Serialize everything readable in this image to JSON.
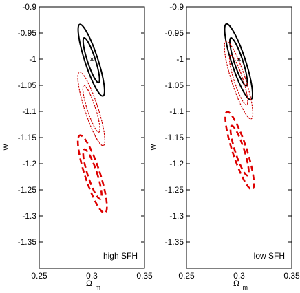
{
  "chart_data": [
    {
      "type": "contour",
      "panel_label": "high SFH",
      "xlabel": "Ω",
      "xlabel_sub": "m",
      "ylabel": "w",
      "xlim": [
        0.25,
        0.35
      ],
      "ylim": [
        -1.4,
        -0.9
      ],
      "xticks": [
        "0.25",
        "0.3",
        "0.35"
      ],
      "yticks": [
        "-0.9",
        "-0.95",
        "-1",
        "-1.05",
        "-1.1",
        "-1.15",
        "-1.2",
        "-1.25",
        "-1.3",
        "-1.35"
      ],
      "fiducial": {
        "x": 0.3,
        "y": -1.0
      },
      "contours": [
        {
          "style": "solid",
          "color": "#000000",
          "level": "outer",
          "cx": 0.2995,
          "cy": -1.002,
          "a": 0.072,
          "b": 0.0062,
          "angle": 18
        },
        {
          "style": "solid",
          "color": "#000000",
          "level": "inner",
          "cx": 0.2995,
          "cy": -1.002,
          "a": 0.045,
          "b": 0.0038,
          "angle": 18
        },
        {
          "style": "dotted",
          "color": "#cc0000",
          "level": "outer",
          "cx": 0.2995,
          "cy": -1.095,
          "a": 0.074,
          "b": 0.0063,
          "angle": 18
        },
        {
          "style": "dotted",
          "color": "#cc0000",
          "level": "inner",
          "cx": 0.2995,
          "cy": -1.095,
          "a": 0.047,
          "b": 0.0039,
          "angle": 18
        },
        {
          "style": "dashed",
          "color": "#dd0000",
          "level": "outer",
          "cx": 0.3005,
          "cy": -1.22,
          "a": 0.078,
          "b": 0.0072,
          "angle": 18
        },
        {
          "style": "dashed",
          "color": "#dd0000",
          "level": "inner",
          "cx": 0.3005,
          "cy": -1.22,
          "a": 0.05,
          "b": 0.0045,
          "angle": 18
        }
      ]
    },
    {
      "type": "contour",
      "panel_label": "low SFH",
      "xlabel": "Ω",
      "xlabel_sub": "m",
      "ylabel": "w",
      "xlim": [
        0.25,
        0.35
      ],
      "ylim": [
        -1.4,
        -0.9
      ],
      "xticks": [
        "0.25",
        "0.3",
        "0.35"
      ],
      "yticks": [
        "-0.9",
        "-0.95",
        "-1",
        "-1.05",
        "-1.1",
        "-1.15",
        "-1.2",
        "-1.25",
        "-1.3",
        "-1.35"
      ],
      "fiducial": {
        "x": 0.3,
        "y": -1.0
      },
      "contours": [
        {
          "style": "solid",
          "color": "#000000",
          "level": "outer",
          "cx": 0.2995,
          "cy": -1.005,
          "a": 0.076,
          "b": 0.0066,
          "angle": 18
        },
        {
          "style": "solid",
          "color": "#000000",
          "level": "inner",
          "cx": 0.2995,
          "cy": -1.005,
          "a": 0.048,
          "b": 0.0041,
          "angle": 18
        },
        {
          "style": "dotted",
          "color": "#cc0000",
          "level": "outer",
          "cx": 0.2995,
          "cy": -1.04,
          "a": 0.078,
          "b": 0.0066,
          "angle": 18
        },
        {
          "style": "dotted",
          "color": "#cc0000",
          "level": "inner",
          "cx": 0.2995,
          "cy": -1.04,
          "a": 0.05,
          "b": 0.0042,
          "angle": 18
        },
        {
          "style": "dashed",
          "color": "#dd0000",
          "level": "outer",
          "cx": 0.3005,
          "cy": -1.175,
          "a": 0.078,
          "b": 0.0068,
          "angle": 18
        },
        {
          "style": "dashed",
          "color": "#dd0000",
          "level": "inner",
          "cx": 0.3005,
          "cy": -1.175,
          "a": 0.05,
          "b": 0.0043,
          "angle": 18
        }
      ]
    }
  ]
}
